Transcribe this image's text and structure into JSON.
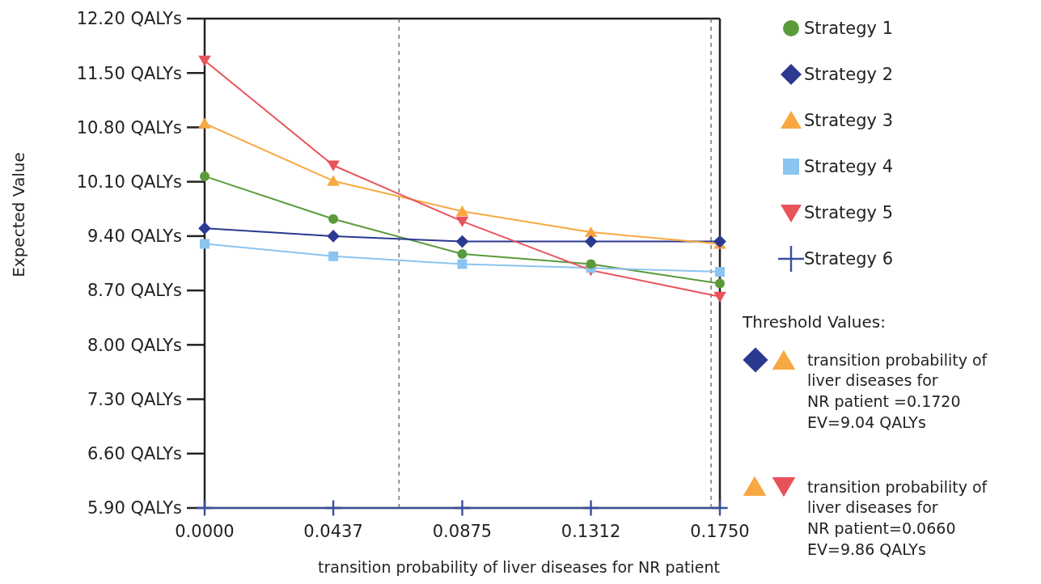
{
  "chart_data": {
    "type": "line",
    "xlabel": "transition probability of liver diseases for NR patient",
    "ylabel": "Expected Value",
    "x": [
      0,
      0.0437,
      0.0875,
      0.1312,
      0.175
    ],
    "xlim": [
      0,
      0.175
    ],
    "xticks": [
      {
        "value": 0,
        "label": "0.0000"
      },
      0.0437,
      0.0875,
      0.1312,
      {
        "value": 0.175,
        "label": "0.1750"
      }
    ],
    "ylim": [
      5.9,
      12.2
    ],
    "yticks": [
      {
        "value": 5.9,
        "label": "5.90 QALYs"
      },
      {
        "value": 6.6,
        "label": "6.60 QALYs"
      },
      {
        "value": 7.3,
        "label": "7.30 QALYs"
      },
      {
        "value": 8.0,
        "label": "8.00 QALYs"
      },
      {
        "value": 8.7,
        "label": "8.70 QALYs"
      },
      {
        "value": 9.4,
        "label": "9.40 QALYs"
      },
      {
        "value": 10.1,
        "label": "10.10 QALYs"
      },
      {
        "value": 10.8,
        "label": "10.80 QALYs"
      },
      {
        "value": 11.5,
        "label": "11.50 QALYs"
      },
      {
        "value": 12.2,
        "label": "12.20 QALYs"
      }
    ],
    "series": [
      {
        "name": "Strategy 1",
        "color": "#5a9a3a",
        "marker": "circle",
        "values": [
          10.17,
          9.62,
          9.17,
          9.04,
          8.79
        ]
      },
      {
        "name": "Strategy 2",
        "color": "#2b3990",
        "marker": "diamond",
        "values": [
          9.5,
          9.4,
          9.33,
          9.33,
          9.33
        ]
      },
      {
        "name": "Strategy 3",
        "color": "#f7a841",
        "marker": "triangle",
        "values": [
          10.85,
          10.11,
          9.72,
          9.45,
          9.3
        ]
      },
      {
        "name": "Strategy 4",
        "color": "#8cc4f0",
        "marker": "square",
        "values": [
          9.3,
          9.14,
          9.04,
          8.99,
          8.94
        ]
      },
      {
        "name": "Strategy 5",
        "color": "#e8525a",
        "marker": "triangle-down",
        "values": [
          11.66,
          10.31,
          9.59,
          8.96,
          8.62
        ]
      },
      {
        "name": "Strategy 6",
        "color": "#3a4fa0",
        "marker": "cross",
        "values": [
          5.9,
          5.9,
          5.9,
          5.9,
          5.9
        ]
      }
    ],
    "ref_lines": [
      {
        "axis": "x",
        "value": 0.066,
        "line_style": "dashed",
        "color": "#555555"
      },
      {
        "axis": "x",
        "value": 0.172,
        "line_style": "dashed",
        "color": "#555555"
      }
    ],
    "annotations": [
      "Threshold Values:",
      "transition probability of\nliver diseases for\nNR patient =0.1720\nEV=9.04 QALYs",
      "transition probability of\nliver diseases for\nNR patient=0.0660\nEV=9.86 QALYs"
    ],
    "legend": "right",
    "grid": false
  }
}
